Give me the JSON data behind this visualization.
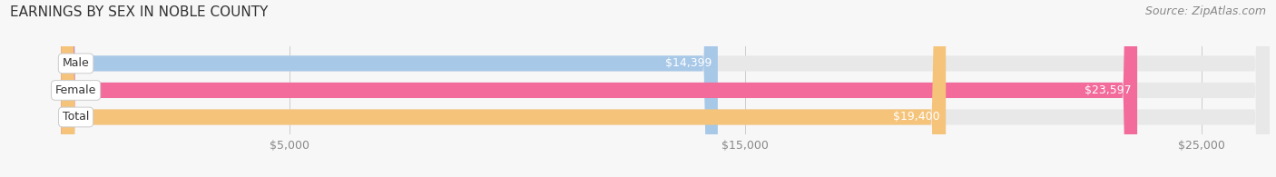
{
  "title": "EARNINGS BY SEX IN NOBLE COUNTY",
  "source": "Source: ZipAtlas.com",
  "categories": [
    "Male",
    "Female",
    "Total"
  ],
  "values": [
    14399,
    23597,
    19400
  ],
  "bar_colors": [
    "#a8c8e8",
    "#f26b9b",
    "#f5c47a"
  ],
  "bar_bg_color": "#e8e8e8",
  "xlim_min": -1200,
  "xlim_max": 26500,
  "xticks": [
    5000,
    15000,
    25000
  ],
  "xtick_labels": [
    "$5,000",
    "$15,000",
    "$25,000"
  ],
  "title_fontsize": 11,
  "source_fontsize": 9,
  "bar_label_fontsize": 9,
  "category_fontsize": 9,
  "tick_fontsize": 9,
  "title_color": "#333333",
  "source_color": "#888888",
  "value_label_color": "#ffffff",
  "category_label_color": "#333333",
  "tick_color": "#888888",
  "background_color": "#f7f7f7",
  "bar_height": 0.58
}
